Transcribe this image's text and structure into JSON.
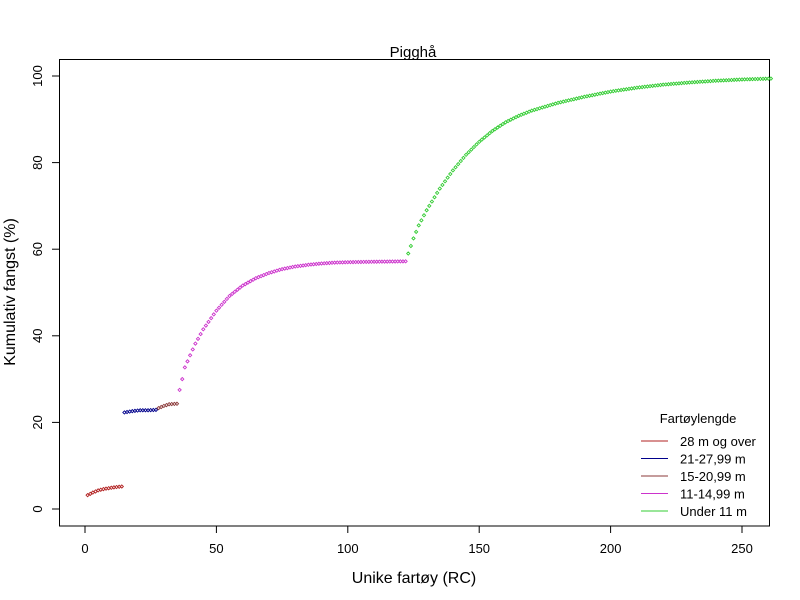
{
  "chart_data": {
    "type": "scatter",
    "title": "Pigghå",
    "xlabel": "Unike fartøy (RC)",
    "ylabel": "Kumulativ fangst (%)",
    "xlim": [
      -10,
      261
    ],
    "ylim": [
      -4,
      104
    ],
    "x_ticks": [
      0,
      50,
      100,
      150,
      200,
      250
    ],
    "y_ticks": [
      0,
      20,
      40,
      60,
      80,
      100
    ],
    "grid": false,
    "legend": {
      "title": "Fartøylengde",
      "position": "bottom-right",
      "entries": [
        {
          "label": "28 m og over",
          "color": "#b22222"
        },
        {
          "label": "21-27,99 m",
          "color": "#00008b"
        },
        {
          "label": "15-20,99 m",
          "color": "#8b3a3a"
        },
        {
          "label": "11-14,99 m",
          "color": "#cc33cc"
        },
        {
          "label": "Under 11 m",
          "color": "#33cc33"
        }
      ]
    },
    "series": [
      {
        "name": "28 m og over",
        "color": "#b22222",
        "x_range": [
          1,
          14
        ],
        "points": [
          [
            1,
            3.2
          ],
          [
            3,
            3.8
          ],
          [
            5,
            4.3
          ],
          [
            7,
            4.6
          ],
          [
            9,
            4.8
          ],
          [
            11,
            5.0
          ],
          [
            14,
            5.2
          ]
        ]
      },
      {
        "name": "21-27,99 m",
        "color": "#00008b",
        "x_range": [
          15,
          27
        ],
        "points": [
          [
            15,
            22.3
          ],
          [
            18,
            22.6
          ],
          [
            21,
            22.8
          ],
          [
            24,
            22.8
          ],
          [
            27,
            22.9
          ]
        ]
      },
      {
        "name": "15-20,99 m",
        "color": "#8b3a3a",
        "x_range": [
          28,
          35
        ],
        "points": [
          [
            28,
            23.3
          ],
          [
            30,
            23.8
          ],
          [
            32,
            24.2
          ],
          [
            35,
            24.3
          ]
        ]
      },
      {
        "name": "11-14,99 m",
        "color": "#cc33cc",
        "x_range": [
          36,
          122
        ],
        "points": [
          [
            36,
            27.5
          ],
          [
            37,
            30.0
          ],
          [
            38,
            32.7
          ],
          [
            40,
            35.5
          ],
          [
            42,
            38.2
          ],
          [
            45,
            41.5
          ],
          [
            50,
            45.8
          ],
          [
            55,
            49.2
          ],
          [
            60,
            51.6
          ],
          [
            65,
            53.3
          ],
          [
            70,
            54.5
          ],
          [
            75,
            55.4
          ],
          [
            80,
            56.0
          ],
          [
            85,
            56.4
          ],
          [
            90,
            56.7
          ],
          [
            95,
            56.9
          ],
          [
            100,
            57.0
          ],
          [
            110,
            57.1
          ],
          [
            122,
            57.2
          ]
        ]
      },
      {
        "name": "Under 11 m",
        "color": "#33cc33",
        "x_range": [
          123,
          261
        ],
        "points": [
          [
            123,
            59.0
          ],
          [
            125,
            62.5
          ],
          [
            127,
            65.5
          ],
          [
            130,
            69.0
          ],
          [
            135,
            74.0
          ],
          [
            140,
            78.2
          ],
          [
            145,
            81.8
          ],
          [
            150,
            84.8
          ],
          [
            155,
            87.3
          ],
          [
            160,
            89.3
          ],
          [
            165,
            90.8
          ],
          [
            170,
            92.0
          ],
          [
            180,
            93.8
          ],
          [
            190,
            95.2
          ],
          [
            200,
            96.4
          ],
          [
            210,
            97.3
          ],
          [
            220,
            98.0
          ],
          [
            230,
            98.5
          ],
          [
            240,
            98.9
          ],
          [
            250,
            99.2
          ],
          [
            261,
            99.4
          ]
        ]
      }
    ]
  }
}
